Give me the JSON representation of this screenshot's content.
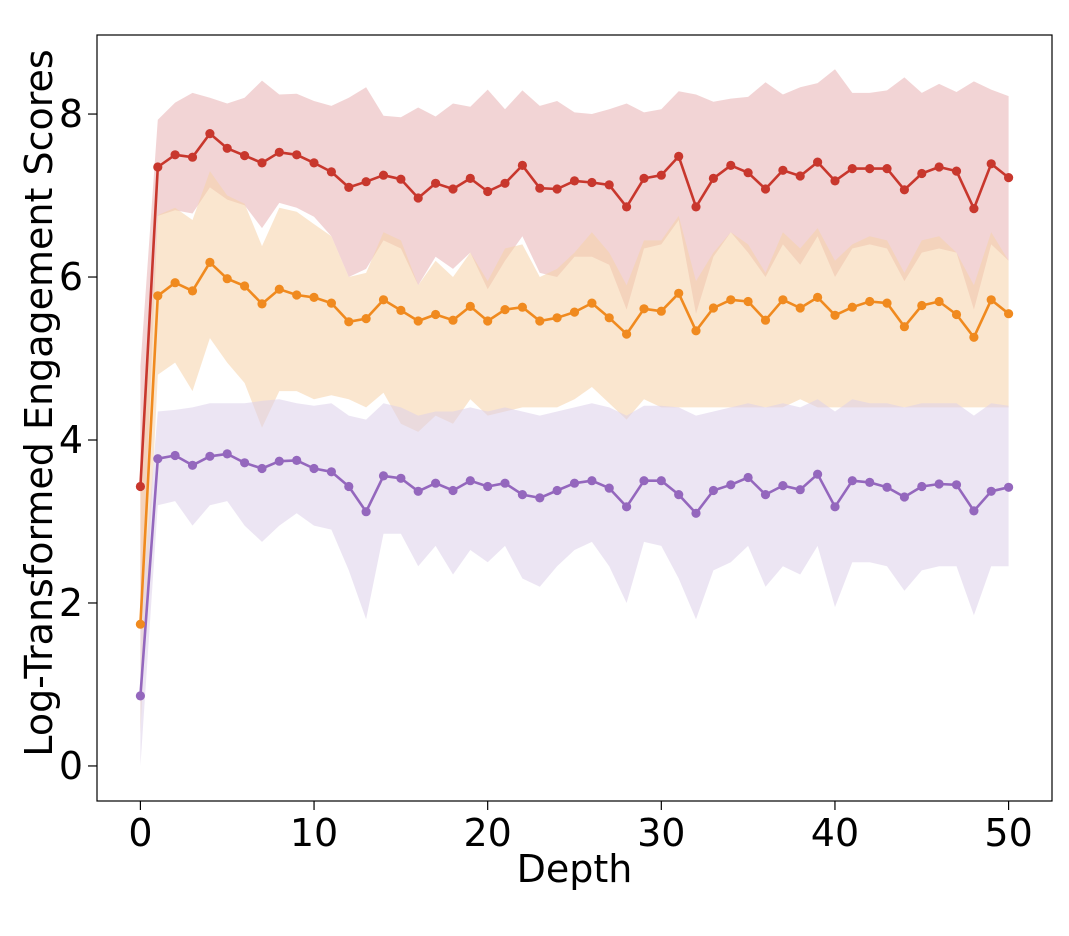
{
  "chart_data": {
    "type": "line",
    "title": "",
    "xlabel": "Depth",
    "ylabel": "Log-Transformed Engagement Scores",
    "xlim": [
      -2.5,
      52.5
    ],
    "ylim": [
      -0.43,
      8.97
    ],
    "xticks": [
      0,
      10,
      20,
      30,
      40,
      50
    ],
    "yticks": [
      0,
      2,
      4,
      6,
      8
    ],
    "grid": false,
    "legend": "none",
    "x": [
      0,
      1,
      2,
      3,
      4,
      5,
      6,
      7,
      8,
      9,
      10,
      11,
      12,
      13,
      14,
      15,
      16,
      17,
      18,
      19,
      20,
      21,
      22,
      23,
      24,
      25,
      26,
      27,
      28,
      29,
      30,
      31,
      32,
      33,
      34,
      35,
      36,
      37,
      38,
      39,
      40,
      41,
      42,
      43,
      44,
      45,
      46,
      47,
      48,
      49,
      50
    ],
    "series": [
      {
        "name": "red",
        "color": "#c8372d",
        "band_color": "#e7b0b3",
        "values": [
          3.43,
          7.35,
          7.5,
          7.47,
          7.76,
          7.58,
          7.49,
          7.4,
          7.53,
          7.5,
          7.4,
          7.29,
          7.1,
          7.17,
          7.25,
          7.2,
          6.97,
          7.15,
          7.08,
          7.21,
          7.05,
          7.15,
          7.37,
          7.09,
          7.08,
          7.18,
          7.16,
          7.13,
          6.86,
          7.21,
          7.25,
          7.48,
          6.86,
          7.21,
          7.37,
          7.28,
          7.08,
          7.31,
          7.24,
          7.41,
          7.18,
          7.33,
          7.33,
          7.33,
          7.07,
          7.27,
          7.35,
          7.3,
          6.84,
          7.39,
          7.22
        ],
        "upper": [
          4.9,
          7.93,
          8.14,
          8.26,
          8.2,
          8.13,
          8.2,
          8.41,
          8.24,
          8.25,
          8.16,
          8.1,
          8.2,
          8.33,
          7.98,
          7.96,
          8.08,
          7.97,
          8.13,
          8.09,
          8.3,
          8.06,
          8.29,
          8.1,
          8.16,
          8.02,
          8.0,
          8.06,
          8.13,
          8.02,
          8.06,
          8.28,
          8.24,
          8.15,
          8.19,
          8.21,
          8.39,
          8.24,
          8.33,
          8.38,
          8.55,
          8.26,
          8.26,
          8.29,
          8.45,
          8.26,
          8.37,
          8.27,
          8.4,
          8.3,
          8.22
        ],
        "lower": [
          1.7,
          6.75,
          6.82,
          6.78,
          7.1,
          6.95,
          6.88,
          6.6,
          6.91,
          6.85,
          6.74,
          6.5,
          6.0,
          6.1,
          6.45,
          6.35,
          5.9,
          6.25,
          6.1,
          6.3,
          5.85,
          6.2,
          6.5,
          6.05,
          6.0,
          6.25,
          6.25,
          6.15,
          5.6,
          6.35,
          6.4,
          6.7,
          5.55,
          6.25,
          6.55,
          6.3,
          6.0,
          6.4,
          6.15,
          6.5,
          6.0,
          6.35,
          6.4,
          6.35,
          5.95,
          6.3,
          6.35,
          6.3,
          5.6,
          6.4,
          6.2
        ]
      },
      {
        "name": "orange",
        "color": "#f08a1f",
        "band_color": "#f5d2a8",
        "values": [
          1.74,
          5.77,
          5.93,
          5.83,
          6.18,
          5.98,
          5.89,
          5.67,
          5.85,
          5.78,
          5.75,
          5.68,
          5.45,
          5.49,
          5.72,
          5.59,
          5.46,
          5.54,
          5.47,
          5.64,
          5.46,
          5.6,
          5.63,
          5.46,
          5.5,
          5.57,
          5.68,
          5.5,
          5.3,
          5.61,
          5.58,
          5.8,
          5.34,
          5.62,
          5.72,
          5.7,
          5.47,
          5.72,
          5.62,
          5.75,
          5.53,
          5.63,
          5.7,
          5.68,
          5.39,
          5.65,
          5.7,
          5.54,
          5.26,
          5.72,
          5.55
        ],
        "upper": [
          3.4,
          6.76,
          6.85,
          6.7,
          7.3,
          7.0,
          6.9,
          6.38,
          6.85,
          6.8,
          6.65,
          6.5,
          6.0,
          6.05,
          6.55,
          6.45,
          5.9,
          6.2,
          6.0,
          6.3,
          5.95,
          6.35,
          6.4,
          6.0,
          6.1,
          6.3,
          6.55,
          6.3,
          5.9,
          6.45,
          6.45,
          6.75,
          5.95,
          6.3,
          6.55,
          6.4,
          6.05,
          6.55,
          6.35,
          6.6,
          6.2,
          6.4,
          6.5,
          6.45,
          6.05,
          6.45,
          6.5,
          6.3,
          5.9,
          6.55,
          6.2
        ],
        "lower": [
          0.4,
          4.8,
          4.95,
          4.6,
          5.25,
          4.95,
          4.7,
          4.15,
          4.6,
          4.6,
          4.5,
          4.55,
          4.5,
          4.4,
          4.58,
          4.2,
          4.1,
          4.3,
          4.2,
          4.5,
          4.3,
          4.35,
          4.4,
          4.4,
          4.4,
          4.5,
          4.65,
          4.45,
          4.25,
          4.5,
          4.4,
          4.4,
          4.4,
          4.4,
          4.4,
          4.4,
          4.4,
          4.4,
          4.5,
          4.4,
          4.4,
          4.4,
          4.4,
          4.4,
          4.4,
          4.4,
          4.4,
          4.4,
          4.4,
          4.4,
          4.4
        ]
      },
      {
        "name": "purple",
        "color": "#9467bd",
        "band_color": "#ddd0ea",
        "values": [
          0.86,
          3.77,
          3.81,
          3.69,
          3.8,
          3.83,
          3.72,
          3.65,
          3.74,
          3.75,
          3.65,
          3.61,
          3.43,
          3.12,
          3.56,
          3.53,
          3.37,
          3.47,
          3.38,
          3.5,
          3.43,
          3.47,
          3.33,
          3.29,
          3.38,
          3.47,
          3.5,
          3.41,
          3.18,
          3.5,
          3.5,
          3.33,
          3.1,
          3.38,
          3.45,
          3.54,
          3.33,
          3.44,
          3.39,
          3.58,
          3.18,
          3.5,
          3.48,
          3.42,
          3.3,
          3.43,
          3.46,
          3.45,
          3.13,
          3.37,
          3.42
        ],
        "upper": [
          1.8,
          4.35,
          4.37,
          4.4,
          4.45,
          4.45,
          4.45,
          4.48,
          4.5,
          4.45,
          4.42,
          4.45,
          4.3,
          4.25,
          4.45,
          4.4,
          4.3,
          4.35,
          4.35,
          4.4,
          4.35,
          4.4,
          4.35,
          4.3,
          4.35,
          4.4,
          4.45,
          4.4,
          4.3,
          4.42,
          4.42,
          4.4,
          4.3,
          4.35,
          4.4,
          4.45,
          4.4,
          4.45,
          4.4,
          4.5,
          4.35,
          4.5,
          4.45,
          4.45,
          4.4,
          4.45,
          4.45,
          4.45,
          4.3,
          4.45,
          4.42
        ],
        "lower": [
          0.0,
          3.2,
          3.25,
          2.95,
          3.2,
          3.25,
          2.95,
          2.75,
          2.95,
          3.1,
          2.95,
          2.9,
          2.4,
          1.8,
          2.85,
          2.85,
          2.45,
          2.7,
          2.35,
          2.65,
          2.5,
          2.7,
          2.3,
          2.2,
          2.45,
          2.65,
          2.75,
          2.45,
          2.0,
          2.75,
          2.7,
          2.3,
          1.8,
          2.4,
          2.5,
          2.7,
          2.2,
          2.45,
          2.35,
          2.7,
          1.95,
          2.5,
          2.5,
          2.45,
          2.15,
          2.4,
          2.45,
          2.45,
          1.85,
          2.45,
          2.45
        ]
      }
    ]
  }
}
